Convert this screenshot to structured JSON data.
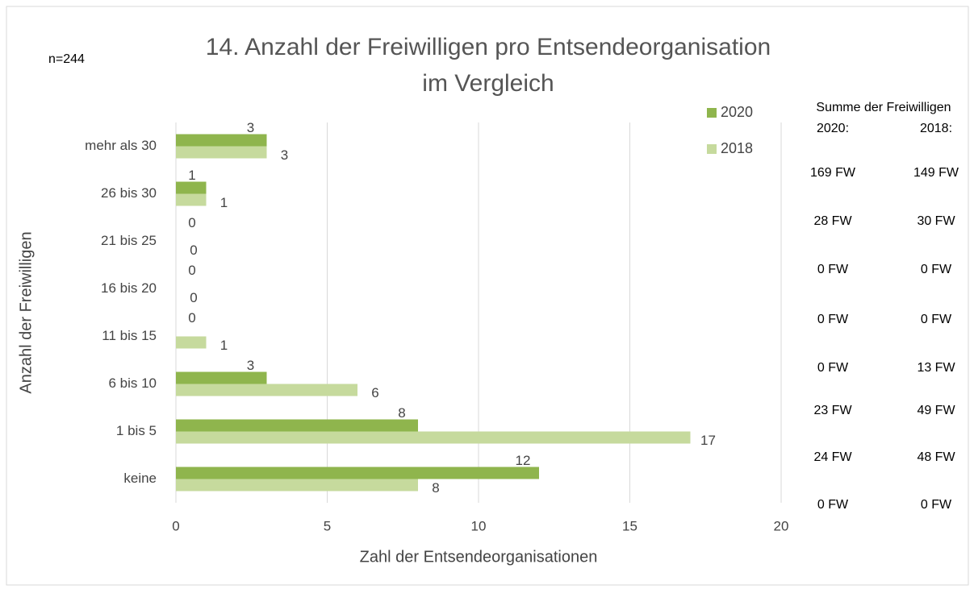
{
  "chart_data": {
    "type": "hbar",
    "title": [
      "14. Anzahl der Freiwilligen pro Entsendeorganisation",
      "im Vergleich"
    ],
    "annotation": "n=244",
    "x_label": "Zahl der Entsendeorganisationen",
    "y_label": "Anzahl der Freiwilligen",
    "categories": [
      "mehr als 30",
      "26 bis 30",
      "21 bis 25",
      "16 bis 20",
      "11 bis 15",
      "6 bis 10",
      "1 bis 5",
      "keine"
    ],
    "series": [
      {
        "name": "2020",
        "color": "#8fb54d",
        "values": [
          3,
          1,
          0,
          0,
          0,
          3,
          8,
          12
        ]
      },
      {
        "name": "2018",
        "color": "#c6da9d",
        "values": [
          3,
          1,
          0,
          0,
          1,
          6,
          17,
          8
        ]
      }
    ],
    "xlim": [
      0,
      20
    ],
    "xticks": [
      0,
      5,
      10,
      15,
      20
    ],
    "grid": true,
    "legend": "top-right",
    "side_table": {
      "title": "Summe der Freiwilligen",
      "headers": [
        "2020:",
        "2018:"
      ],
      "rows": [
        [
          "169 FW",
          "149 FW"
        ],
        [
          "28 FW",
          "30 FW"
        ],
        [
          "0 FW",
          "0 FW"
        ],
        [
          "0 FW",
          "0 FW"
        ],
        [
          "0 FW",
          "13 FW"
        ],
        [
          "23 FW",
          "49 FW"
        ],
        [
          "24 FW",
          "48 FW"
        ],
        [
          "0 FW",
          "0 FW"
        ]
      ]
    }
  }
}
